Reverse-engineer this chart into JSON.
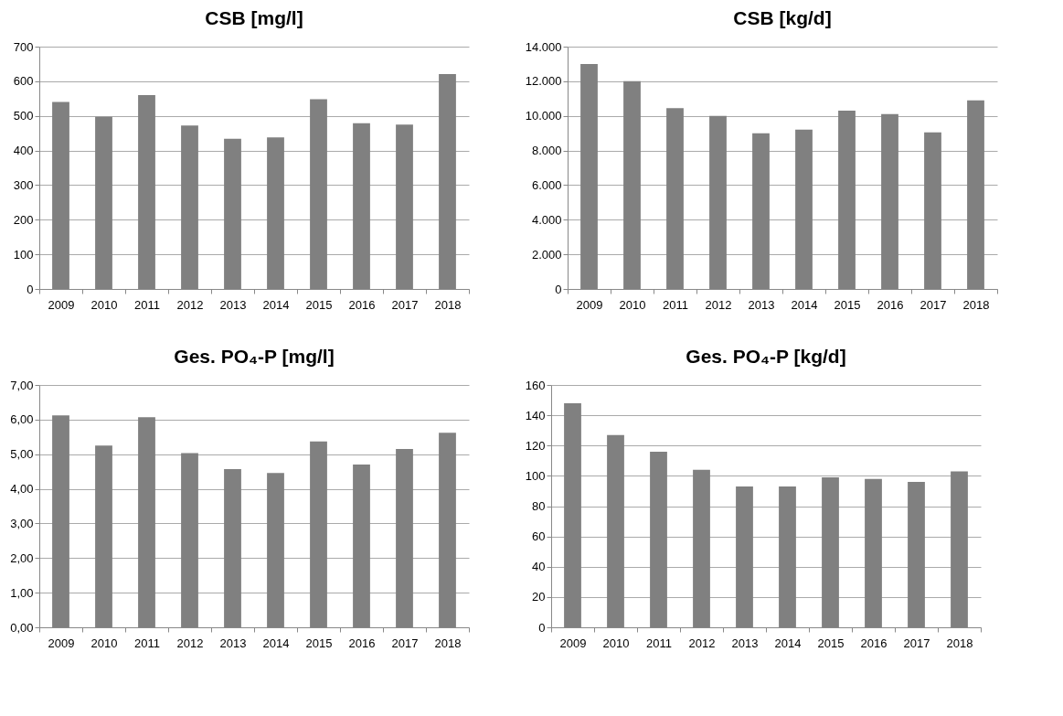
{
  "chart_data": [
    {
      "type": "bar",
      "title": "CSB [mg/l]",
      "categories": [
        "2009",
        "2010",
        "2011",
        "2012",
        "2013",
        "2014",
        "2015",
        "2016",
        "2017",
        "2018"
      ],
      "values": [
        540,
        497,
        560,
        472,
        434,
        438,
        548,
        479,
        475,
        621
      ],
      "color": "#808080",
      "ylim": [
        0,
        700
      ],
      "yticks": [
        0,
        100,
        200,
        300,
        400,
        500,
        600,
        700
      ],
      "grid": "y"
    },
    {
      "type": "bar",
      "title": "CSB [kg/d]",
      "categories": [
        "2009",
        "2010",
        "2011",
        "2012",
        "2013",
        "2014",
        "2015",
        "2016",
        "2017",
        "2018"
      ],
      "values": [
        13000,
        12000,
        10450,
        10000,
        9000,
        9200,
        10300,
        10100,
        9050,
        10900
      ],
      "color": "#808080",
      "ylim": [
        0,
        14000
      ],
      "yticks": [
        0,
        {
          "value": 2000,
          "label": "2.000"
        },
        {
          "value": 4000,
          "label": "4.000"
        },
        {
          "value": 6000,
          "label": "6.000"
        },
        {
          "value": 8000,
          "label": "8.000"
        },
        {
          "value": 10000,
          "label": "10.000"
        },
        {
          "value": 12000,
          "label": "12.000"
        },
        {
          "value": 14000,
          "label": "14.000"
        }
      ],
      "grid": "y"
    },
    {
      "type": "bar",
      "title": "Ges. PO₄-P [mg/l]",
      "categories": [
        "2009",
        "2010",
        "2011",
        "2012",
        "2013",
        "2014",
        "2015",
        "2016",
        "2017",
        "2018"
      ],
      "values": [
        6.12,
        5.25,
        6.07,
        5.03,
        4.57,
        4.46,
        5.37,
        4.7,
        5.15,
        5.62
      ],
      "color": "#808080",
      "ylim": [
        0,
        7
      ],
      "yticks": [
        {
          "value": 0,
          "label": "0,00"
        },
        {
          "value": 1,
          "label": "1,00"
        },
        {
          "value": 2,
          "label": "2,00"
        },
        {
          "value": 3,
          "label": "3,00"
        },
        {
          "value": 4,
          "label": "4,00"
        },
        {
          "value": 5,
          "label": "5,00"
        },
        {
          "value": 6,
          "label": "6,00"
        },
        {
          "value": 7,
          "label": "7,00"
        }
      ],
      "grid": "y"
    },
    {
      "type": "bar",
      "title": "Ges. PO₄-P [kg/d]",
      "categories": [
        "2009",
        "2010",
        "2011",
        "2012",
        "2013",
        "2014",
        "2015",
        "2016",
        "2017",
        "2018"
      ],
      "values": [
        148,
        127,
        116,
        104,
        93,
        93,
        99,
        98,
        96,
        103
      ],
      "color": "#808080",
      "ylim": [
        0,
        160
      ],
      "yticks": [
        0,
        20,
        40,
        60,
        80,
        100,
        120,
        140,
        160
      ],
      "grid": "y"
    }
  ]
}
